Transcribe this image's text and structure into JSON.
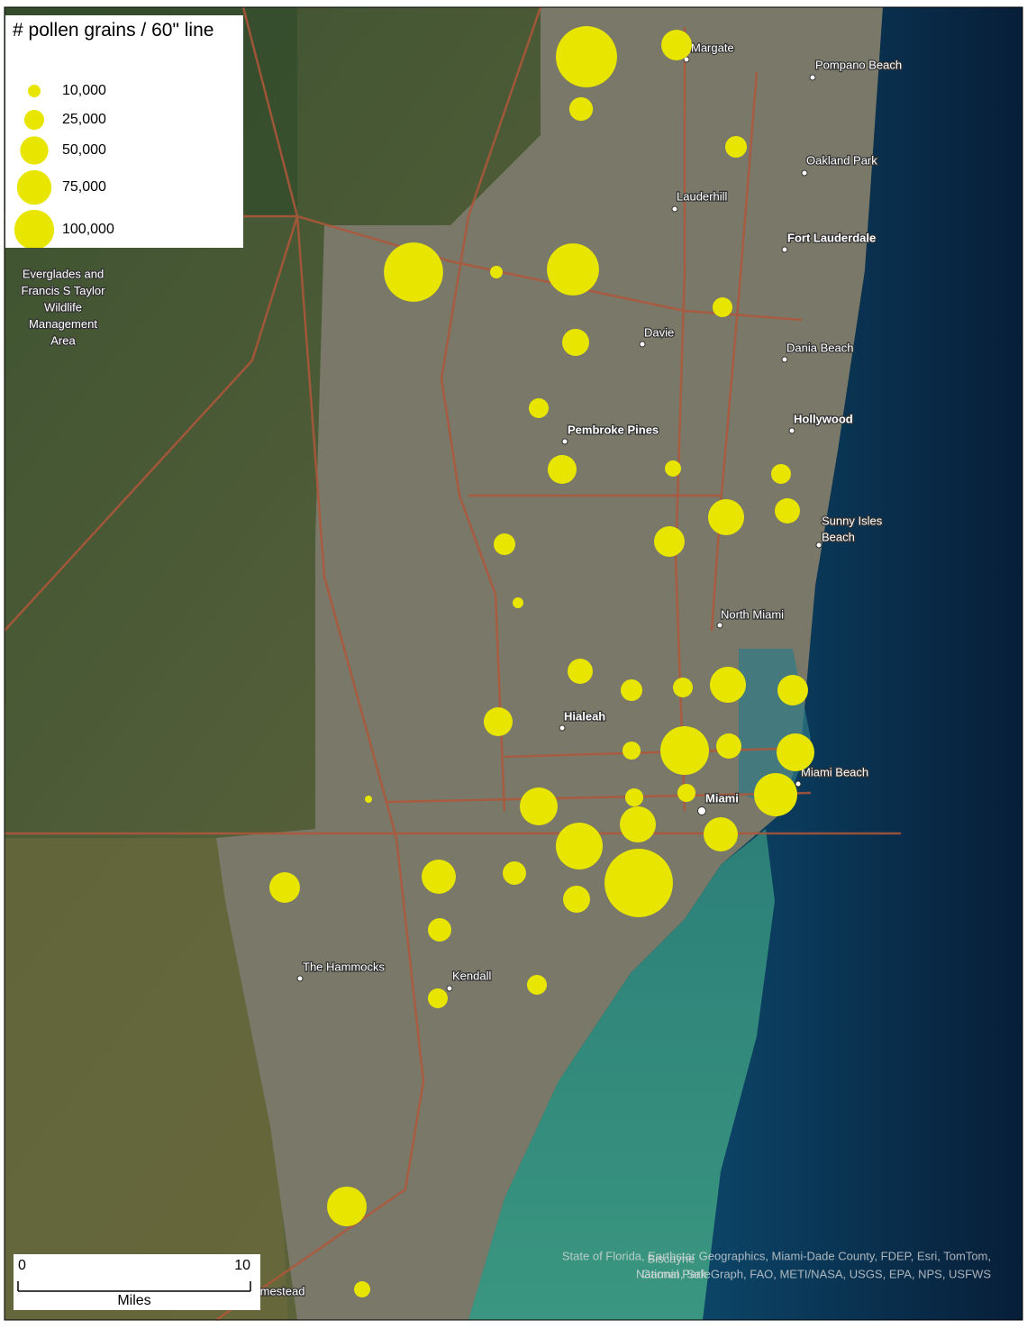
{
  "legend": {
    "title": "# pollen grains / 60\" line",
    "sizes": [
      {
        "value": 10000,
        "label": "10,000"
      },
      {
        "value": 25000,
        "label": "25,000"
      },
      {
        "value": 50000,
        "label": "50,000"
      },
      {
        "value": 75000,
        "label": "75,000"
      },
      {
        "value": 100000,
        "label": "100,000"
      }
    ]
  },
  "circle_color": "#e8e600",
  "sites": [
    80000,
    20000,
    12000,
    10000,
    75000,
    58000,
    3400,
    8400,
    15600,
    8400,
    17800,
    5600,
    8400,
    27800,
    13600,
    20000,
    10000,
    2500,
    13600,
    10000,
    8400,
    27800,
    20000,
    17800,
    50600,
    7000,
    13600,
    30600,
    40000,
    1100,
    30600,
    7000,
    7000,
    27800,
    47000,
    25000,
    100000,
    20000,
    25000,
    11700,
    15600,
    11700,
    8400,
    8400,
    33600,
    5600
  ],
  "places": [
    "Margate",
    "Pompano Beach",
    "Oakland Park",
    "Lauderhill",
    "Fort Lauderdale",
    "Davie",
    "Dania Beach",
    "Hollywood",
    "Pembroke Pines",
    "Sunny Isles",
    "Beach",
    "North Miami",
    "Hialeah",
    "Miami Beach",
    "Miami",
    "The Hammocks",
    "Kendall",
    "Homestead"
  ],
  "area_label": [
    "Everglades and",
    "Francis S Taylor",
    "Wildlife",
    "Management",
    "Area"
  ],
  "park_label": [
    "Biscayne",
    "National Park"
  ],
  "attribution": [
    "State of Florida, Earthstar Geographics, Miami-Dade County, FDEP, Esri, TomTom,",
    "Garmin, SafeGraph, FAO, METI/NASA, USGS, EPA, NPS, USFWS"
  ],
  "scale_bar": {
    "ticks": [
      0,
      10
    ],
    "unit": "Miles"
  }
}
